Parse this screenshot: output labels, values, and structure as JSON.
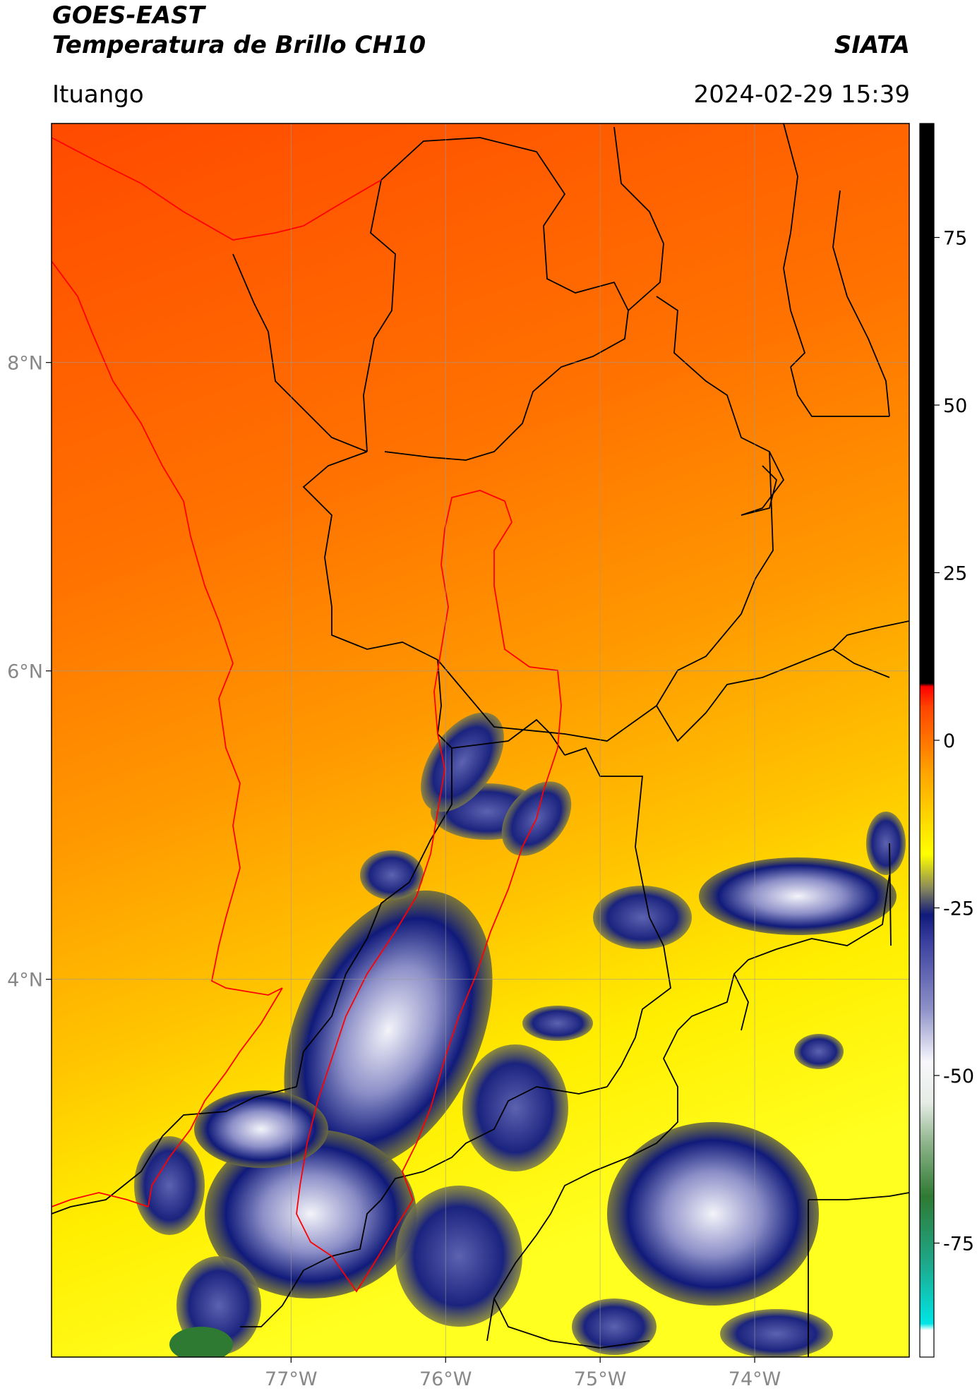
{
  "header": {
    "satellite": "GOES-EAST",
    "product": "Temperatura de Brillo CH10",
    "brand": "SIATA",
    "region": "Ituango",
    "timestamp": "2024-02-29 15:39"
  },
  "map": {
    "longitude_ticks": [
      "77°W",
      "76°W",
      "75°W",
      "74°W"
    ],
    "longitude_values": [
      -77,
      -76,
      -75,
      -74
    ],
    "latitude_ticks": [
      "8°N",
      "6°N",
      "4°N"
    ],
    "latitude_values": [
      8,
      6,
      4
    ],
    "extent": {
      "lon_min": -78.55,
      "lon_max": -73.0,
      "lat_min": 1.55,
      "lat_max": 9.55
    },
    "grid": true,
    "layers": [
      "brightness temperature field",
      "department boundaries (black)",
      "coastline (red)",
      "basin outline (red)"
    ]
  },
  "colorbar": {
    "tick_labels": [
      "75",
      "50",
      "25",
      "0",
      "-25",
      "-50",
      "-75"
    ],
    "tick_values": [
      75,
      50,
      25,
      0,
      -25,
      -50,
      -75
    ],
    "range": [
      -92,
      92
    ],
    "stops": [
      {
        "value": -92,
        "color": "#ffffff"
      },
      {
        "value": -88,
        "color": "#ffffff"
      },
      {
        "value": -87,
        "color": "#00e5e5"
      },
      {
        "value": -78,
        "color": "#1ea88a"
      },
      {
        "value": -68,
        "color": "#2f7a33"
      },
      {
        "value": -60,
        "color": "#8fb58c"
      },
      {
        "value": -54,
        "color": "#e6ece6"
      },
      {
        "value": -48,
        "color": "#f8f8fc"
      },
      {
        "value": -40,
        "color": "#8d90c8"
      },
      {
        "value": -30,
        "color": "#3a3f9e"
      },
      {
        "value": -26,
        "color": "#101a7a"
      },
      {
        "value": -22,
        "color": "#8a8a5a"
      },
      {
        "value": -17,
        "color": "#ffff00"
      },
      {
        "value": -5,
        "color": "#ffa500"
      },
      {
        "value": 5,
        "color": "#ff4400"
      },
      {
        "value": 8,
        "color": "#ff0000"
      },
      {
        "value": 8.5,
        "color": "#000000"
      },
      {
        "value": 92,
        "color": "#000000"
      }
    ]
  },
  "palette": {
    "warm": "#ff5a00",
    "mid": "#ff9a00",
    "cool": "#ffe800",
    "cloud_edge": "#1a237e",
    "cloud_core": "#f4f4fa",
    "coast": "#ff0000",
    "boundary": "#000000",
    "grid": "#9a9a9a"
  }
}
